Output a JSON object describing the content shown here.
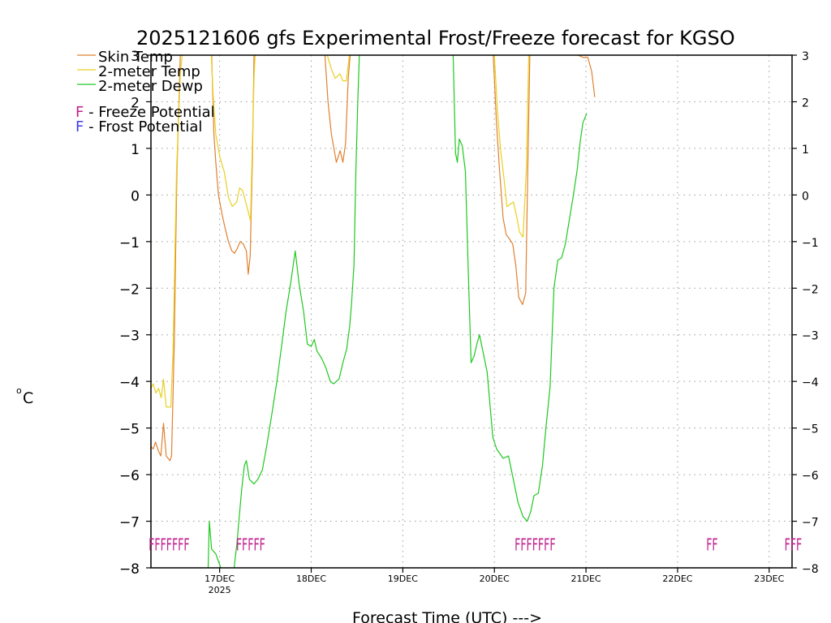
{
  "chart_data": {
    "type": "line",
    "title": "2025121606 gfs Experimental Frost/Freeze forecast for KGSO",
    "xlabel": "Forecast Time (UTC) --->",
    "ylabel": "°C",
    "ylabel_degree": "o",
    "ylabel_unit": "C",
    "ylim": [
      -8,
      3
    ],
    "yticks": [
      -8,
      -7,
      -6,
      -5,
      -4,
      -3,
      -2,
      -1,
      0,
      1,
      2,
      3
    ],
    "xlim": [
      0,
      168
    ],
    "grid": true,
    "x_units": "hours since 2025-12-16 06Z",
    "xticks": [
      {
        "x": 18,
        "label": "17DEC",
        "sublabel": "2025"
      },
      {
        "x": 42,
        "label": "18DEC",
        "sublabel": ""
      },
      {
        "x": 66,
        "label": "19DEC",
        "sublabel": ""
      },
      {
        "x": 90,
        "label": "20DEC",
        "sublabel": ""
      },
      {
        "x": 114,
        "label": "21DEC",
        "sublabel": ""
      },
      {
        "x": 138,
        "label": "22DEC",
        "sublabel": ""
      },
      {
        "x": 162,
        "label": "23DEC",
        "sublabel": ""
      }
    ],
    "legend": [
      {
        "label": "Skin Temp",
        "color": "#e08030"
      },
      {
        "label": "2-meter Temp",
        "color": "#e8d020"
      },
      {
        "label": "2-meter Dewp",
        "color": "#20c820"
      }
    ],
    "potential_legend": [
      {
        "letter": "F",
        "text": " - Freeze Potential",
        "color": "#c0208c"
      },
      {
        "letter": "F",
        "text": " - Frost Potential",
        "color": "#4040e0"
      }
    ],
    "series": [
      {
        "name": "Skin Temp",
        "color": "#e08030",
        "points": [
          [
            0,
            -5.4
          ],
          [
            0.6,
            -5.45
          ],
          [
            1.2,
            -5.3
          ],
          [
            2,
            -5.5
          ],
          [
            2.6,
            -5.6
          ],
          [
            3.3,
            -4.9
          ],
          [
            4,
            -5.6
          ],
          [
            5,
            -5.7
          ],
          [
            5.4,
            -5.6
          ],
          [
            6.1,
            -3.2
          ],
          [
            6.8,
            0.5
          ],
          [
            7.7,
            3.0
          ],
          [
            15.9,
            3.0
          ],
          [
            16.5,
            1.3
          ],
          [
            17,
            0.7
          ],
          [
            17.7,
            0.0
          ],
          [
            18.6,
            -0.4
          ],
          [
            19.4,
            -0.7
          ],
          [
            20.3,
            -1.0
          ],
          [
            21.2,
            -1.2
          ],
          [
            21.9,
            -1.25
          ],
          [
            22.6,
            -1.15
          ],
          [
            23.4,
            -1.0
          ],
          [
            24.2,
            -1.05
          ],
          [
            25,
            -1.2
          ],
          [
            25.5,
            -1.7
          ],
          [
            26,
            -1.3
          ],
          [
            26.6,
            0.8
          ],
          [
            27,
            3.0
          ],
          [
            45.6,
            3.0
          ],
          [
            46.4,
            2.0
          ],
          [
            47.3,
            1.3
          ],
          [
            48.6,
            0.7
          ],
          [
            49.6,
            0.95
          ],
          [
            50.3,
            0.7
          ],
          [
            51,
            1.1
          ],
          [
            51.7,
            2.5
          ],
          [
            52.2,
            3.0
          ],
          [
            89.7,
            3.0
          ],
          [
            90.5,
            1.6
          ],
          [
            91.3,
            0.6
          ],
          [
            92.3,
            -0.5
          ],
          [
            93.1,
            -0.85
          ],
          [
            94,
            -0.95
          ],
          [
            94.8,
            -1.05
          ],
          [
            95.6,
            -1.5
          ],
          [
            96.4,
            -2.2
          ],
          [
            97.4,
            -2.35
          ],
          [
            98.2,
            -2.1
          ],
          [
            98.8,
            0.8
          ],
          [
            99.3,
            3.0
          ],
          [
            111.8,
            3.0
          ],
          [
            113.4,
            2.95
          ],
          [
            114.5,
            2.95
          ],
          [
            115.5,
            2.65
          ],
          [
            116.3,
            2.1
          ]
        ]
      },
      {
        "name": "2-meter Temp",
        "color": "#e8d020",
        "points": [
          [
            0,
            -4.15
          ],
          [
            0.6,
            -4.05
          ],
          [
            1.3,
            -4.25
          ],
          [
            2,
            -4.15
          ],
          [
            2.7,
            -4.35
          ],
          [
            3.3,
            -3.95
          ],
          [
            4,
            -4.55
          ],
          [
            5.2,
            -4.55
          ],
          [
            5.8,
            -3.3
          ],
          [
            6.7,
            0.5
          ],
          [
            7.7,
            2.6
          ],
          [
            8.2,
            3.0
          ],
          [
            15.8,
            3.0
          ],
          [
            16.4,
            2.0
          ],
          [
            17,
            1.3
          ],
          [
            18.1,
            0.8
          ],
          [
            19.2,
            0.5
          ],
          [
            20.3,
            -0.05
          ],
          [
            21.3,
            -0.25
          ],
          [
            22.5,
            -0.15
          ],
          [
            23.2,
            0.15
          ],
          [
            24,
            0.1
          ],
          [
            25.3,
            -0.3
          ],
          [
            26.1,
            -0.55
          ],
          [
            27,
            2.5
          ],
          [
            27.3,
            3.0
          ],
          [
            46.2,
            3.0
          ],
          [
            47.3,
            2.7
          ],
          [
            48.3,
            2.5
          ],
          [
            49.5,
            2.6
          ],
          [
            50.3,
            2.45
          ],
          [
            51.2,
            2.45
          ],
          [
            52,
            3.0
          ],
          [
            90.0,
            3.0
          ],
          [
            90.8,
            1.8
          ],
          [
            91.6,
            1.0
          ],
          [
            92.6,
            0.3
          ],
          [
            93.3,
            -0.25
          ],
          [
            94.1,
            -0.2
          ],
          [
            95,
            -0.15
          ],
          [
            95.8,
            -0.45
          ],
          [
            96.6,
            -0.8
          ],
          [
            97.5,
            -0.9
          ],
          [
            98.4,
            0.6
          ],
          [
            99.0,
            3.0
          ]
        ]
      },
      {
        "name": "2-meter Dewp",
        "color": "#20c820",
        "points": [
          [
            15.0,
            -8.0
          ],
          [
            15.3,
            -7.0
          ],
          [
            15.9,
            -7.6
          ],
          [
            17.0,
            -7.7
          ],
          [
            18.3,
            -8.0
          ],
          [
            21.8,
            -8.0
          ],
          [
            22.5,
            -7.5
          ],
          [
            23.8,
            -6.3
          ],
          [
            24.5,
            -5.8
          ],
          [
            25,
            -5.7
          ],
          [
            25.8,
            -6.1
          ],
          [
            27,
            -6.2
          ],
          [
            28,
            -6.1
          ],
          [
            29.2,
            -5.9
          ],
          [
            30.3,
            -5.4
          ],
          [
            31.5,
            -4.8
          ],
          [
            33,
            -4.0
          ],
          [
            34.3,
            -3.2
          ],
          [
            35.4,
            -2.5
          ],
          [
            36.6,
            -1.9
          ],
          [
            37.8,
            -1.2
          ],
          [
            38.8,
            -1.9
          ],
          [
            40,
            -2.5
          ],
          [
            41,
            -3.2
          ],
          [
            42,
            -3.25
          ],
          [
            42.8,
            -3.1
          ],
          [
            43.5,
            -3.35
          ],
          [
            44.7,
            -3.5
          ],
          [
            45.8,
            -3.7
          ],
          [
            47,
            -4.0
          ],
          [
            47.9,
            -4.05
          ],
          [
            49.3,
            -3.95
          ],
          [
            50.3,
            -3.6
          ],
          [
            51.3,
            -3.3
          ],
          [
            52.1,
            -2.8
          ],
          [
            52.6,
            -2.3
          ],
          [
            53.2,
            -1.5
          ],
          [
            53.7,
            0.5
          ],
          [
            54.2,
            2.0
          ],
          [
            54.6,
            3.0
          ],
          [
            79.2,
            3.0
          ],
          [
            79.8,
            0.9
          ],
          [
            80.3,
            0.7
          ],
          [
            80.8,
            1.2
          ],
          [
            81.6,
            1.05
          ],
          [
            82.4,
            0.5
          ],
          [
            83.1,
            -1.5
          ],
          [
            83.9,
            -3.6
          ],
          [
            84.7,
            -3.45
          ],
          [
            85.4,
            -3.2
          ],
          [
            86.1,
            -3.0
          ],
          [
            87.1,
            -3.4
          ],
          [
            88.1,
            -3.8
          ],
          [
            89.6,
            -5.2
          ],
          [
            90.6,
            -5.45
          ],
          [
            92.3,
            -5.65
          ],
          [
            93.7,
            -5.6
          ],
          [
            95.2,
            -6.2
          ],
          [
            96.2,
            -6.6
          ],
          [
            97.5,
            -6.9
          ],
          [
            98.6,
            -7.0
          ],
          [
            99.5,
            -6.8
          ],
          [
            100.4,
            -6.45
          ],
          [
            101.5,
            -6.4
          ],
          [
            102.6,
            -5.8
          ],
          [
            103.5,
            -5.0
          ],
          [
            104.6,
            -4.1
          ],
          [
            105.6,
            -2.0
          ],
          [
            106.6,
            -1.4
          ],
          [
            107.6,
            -1.35
          ],
          [
            108.6,
            -1.05
          ],
          [
            109.6,
            -0.55
          ],
          [
            110.7,
            0.0
          ],
          [
            111.7,
            0.55
          ],
          [
            112.5,
            1.15
          ],
          [
            113.2,
            1.55
          ],
          [
            114.2,
            1.75
          ]
        ]
      }
    ],
    "potential_markers": [
      {
        "text": "FFFFFFF",
        "color": "#c0208c",
        "x_start": -0.6
      },
      {
        "text": "FFFFF",
        "color": "#c0208c",
        "x_start": 22.3
      },
      {
        "text": "FFFFFFF",
        "color": "#c0208c",
        "x_start": 95.3
      },
      {
        "text": "FF",
        "color": "#c0208c",
        "x_start": 145.5
      },
      {
        "text": "FFF",
        "color": "#c0208c",
        "x_start": 166.0
      }
    ]
  }
}
